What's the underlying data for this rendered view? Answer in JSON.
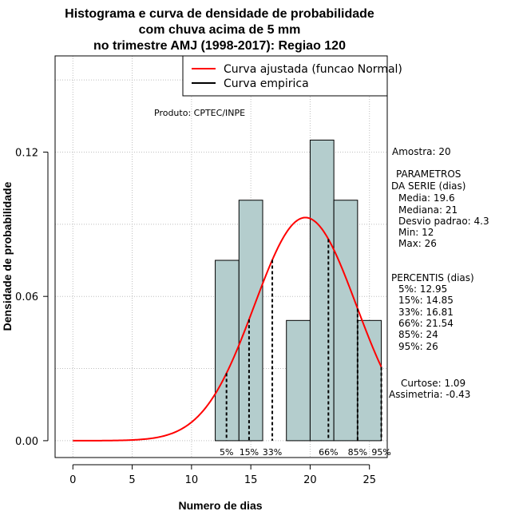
{
  "title_lines": [
    "Histograma e curva de densidade de probabilidade",
    "com chuva acima de 5 mm",
    "no trimestre AMJ (1998-2017): Regiao 120"
  ],
  "product": "Produto: CPTEC/INPE",
  "legend": {
    "fitted": "Curva ajustada (funcao Normal)",
    "empirical": "Curva empirica"
  },
  "stats": {
    "sample": "Amostra: 20",
    "params_title_1": "PARAMETROS",
    "params_title_2": "DA SERIE (dias)",
    "mean": "Media: 19.6",
    "median": "Mediana: 21",
    "sd": "Desvio padrao: 4.3",
    "min": "Min: 12",
    "max": "Max: 26",
    "pct_title": "PERCENTIS (dias)",
    "p5": "5%: 12.95",
    "p15": "15%: 14.85",
    "p33": "33%: 16.81",
    "p66": "66%: 21.54",
    "p85": "85%: 24",
    "p95": "95%: 26",
    "kurtosis": "Curtose: 1.09",
    "skewness": "Assimetria: -0.43"
  },
  "colors": {
    "bars": "#b4cdcd",
    "curve": "#ff0000",
    "grid": "#bebebe"
  },
  "chart_data": {
    "type": "bar",
    "title": "Histograma e curva de densidade de probabilidade com chuva acima de 5 mm no trimestre AMJ (1998-2017): Regiao 120",
    "xlabel": "Numero de dias",
    "ylabel": "Densidade de probabilidade",
    "xlim": [
      -1.5,
      26.5
    ],
    "ylim": [
      -0.007,
      0.16
    ],
    "x_ticks": [
      0,
      5,
      10,
      15,
      20,
      25
    ],
    "y_ticks": [
      0.0,
      0.06,
      0.12
    ],
    "y_tick_labels": [
      "0.00",
      "0.06",
      "0.12"
    ],
    "bin_edges": [
      12,
      14,
      16,
      18,
      20,
      22,
      24,
      26
    ],
    "density": [
      0.075,
      0.1,
      0.0,
      0.05,
      0.125,
      0.1,
      0.05
    ],
    "normal_fit": {
      "mean": 19.6,
      "sd": 4.3,
      "x_from": 0,
      "x_to": 26
    },
    "percentiles": [
      {
        "label": "5%",
        "x": 12.95
      },
      {
        "label": "15%",
        "x": 14.85
      },
      {
        "label": "33%",
        "x": 16.81
      },
      {
        "label": "66%",
        "x": 21.54
      },
      {
        "label": "85%",
        "x": 24
      },
      {
        "label": "95%",
        "x": 26
      }
    ],
    "grid": true,
    "legend_position": "top-right"
  }
}
